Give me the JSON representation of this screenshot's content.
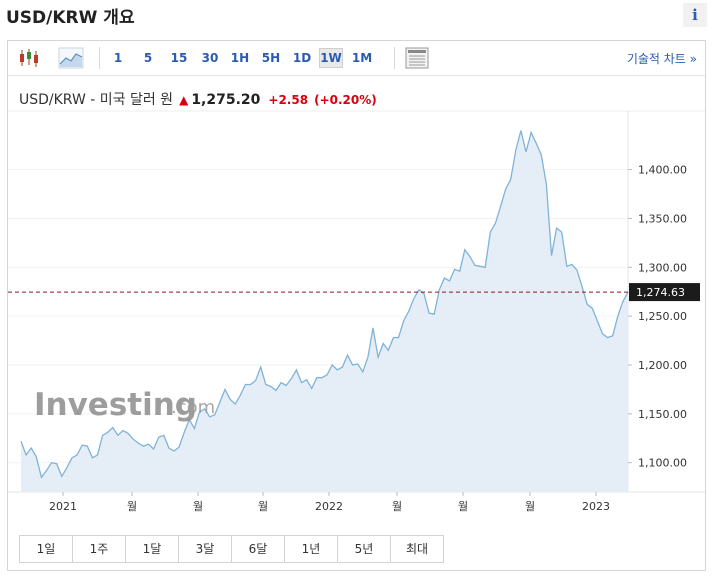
{
  "header": {
    "title": "USD/KRW 개요",
    "info_glyph": "i"
  },
  "toolbar": {
    "intervals": [
      "1",
      "5",
      "15",
      "30",
      "1H",
      "5H",
      "1D",
      "1W",
      "1M"
    ],
    "active_interval": "1W",
    "technical_chart_link": "기술적 차트 »"
  },
  "quote": {
    "name": "USD/KRW - 미국 달러 원",
    "price": "1,275.20",
    "change": "+2.58",
    "change_pct": "(+0.20%)",
    "direction": "up",
    "up_color": "#d8000c"
  },
  "watermark": {
    "brand": "Investing",
    "suffix": ".com"
  },
  "chart_data": {
    "type": "area",
    "x_labels": [
      "2021",
      "월",
      "월",
      "월",
      "2022",
      "월",
      "월",
      "월",
      "2023"
    ],
    "y_ticks": [
      "1,100.00",
      "1,150.00",
      "1,200.00",
      "1,250.00",
      "1,300.00",
      "1,350.00",
      "1,400.00"
    ],
    "ylim": [
      1070,
      1460
    ],
    "current_value": 1274.63,
    "current_value_label": "1,274.63",
    "line_color": "#7fb3d8",
    "fill_color": "#e5eef7",
    "series": [
      {
        "values": [
          1122,
          1108,
          1115,
          1106,
          1085,
          1092,
          1100,
          1099,
          1086,
          1095,
          1105,
          1108,
          1118,
          1117,
          1105,
          1108,
          1128,
          1131,
          1136,
          1128,
          1133,
          1130,
          1124,
          1120,
          1117,
          1119,
          1114,
          1126,
          1128,
          1115,
          1112,
          1116,
          1131,
          1144,
          1135,
          1152,
          1155,
          1147,
          1149,
          1162,
          1175,
          1165,
          1160,
          1169,
          1180,
          1180,
          1184,
          1198,
          1180,
          1178,
          1174,
          1182,
          1179,
          1186,
          1195,
          1182,
          1185,
          1176,
          1187,
          1187,
          1190,
          1200,
          1195,
          1198,
          1210,
          1200,
          1201,
          1193,
          1208,
          1238,
          1208,
          1222,
          1215,
          1228,
          1228,
          1245,
          1255,
          1268,
          1277,
          1273,
          1253,
          1252,
          1277,
          1289,
          1286,
          1298,
          1296,
          1318,
          1311,
          1302,
          1301,
          1300,
          1336,
          1345,
          1362,
          1380,
          1390,
          1420,
          1440,
          1418,
          1438,
          1427,
          1415,
          1385,
          1312,
          1340,
          1336,
          1301,
          1303,
          1297,
          1280,
          1262,
          1258,
          1245,
          1232,
          1228,
          1230,
          1250,
          1265,
          1274.63
        ]
      }
    ]
  },
  "ranges": [
    "1일",
    "1주",
    "1달",
    "3달",
    "6달",
    "1년",
    "5년",
    "최대"
  ]
}
